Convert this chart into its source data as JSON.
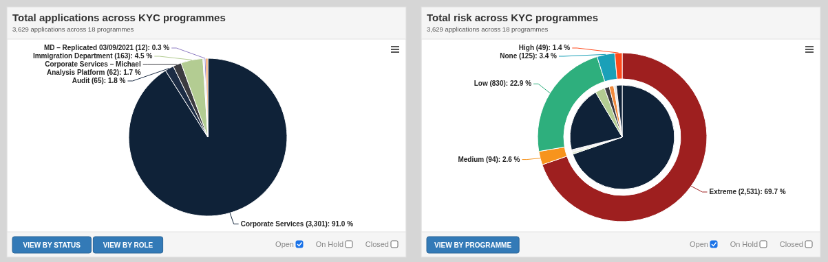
{
  "chart_data": [
    {
      "type": "pie",
      "title": "Total applications across KYC programmes",
      "subtitle": "3,629 applications across 18 programmes",
      "categories": [
        "Corporate Services (3,301)",
        "Audit (65)",
        "Corporate Services – Michael Analysis Platform (62)",
        "Immigration Department (163)",
        null,
        "MD – Replicated 03/09/2021 (12)",
        null
      ],
      "values": [
        91.0,
        1.8,
        1.7,
        4.5,
        0.3,
        0.3,
        0.4
      ],
      "colors": [
        "#0f2238",
        "#1c2c44",
        "#3b3b40",
        "#b3cc92",
        "#e4e4f0",
        "#8e7cc3",
        "#f08a3c"
      ],
      "value_labels": [
        "91.0 %",
        "1.8 %",
        "1.7 %",
        "4.5 %",
        null,
        "0.3 %",
        null
      ],
      "annotations": [
        "VIEW BY STATUS",
        "VIEW BY ROLE",
        "Open",
        "On Hold",
        "Closed"
      ]
    },
    {
      "type": "donut",
      "title": "Total risk across KYC programmes",
      "subtitle": "3,629 applications across 18 programmes",
      "categories": [
        "Extreme (2,531)",
        "Medium (94)",
        "Low (830)",
        "None (125)",
        "High (49)"
      ],
      "values": [
        69.7,
        2.6,
        22.9,
        3.4,
        1.4
      ],
      "colors": [
        "#9e1f1f",
        "#f7941d",
        "#2eaf7d",
        "#1aa0b8",
        "#ff4a1c"
      ],
      "value_labels": [
        "69.7 %",
        "2.6 %",
        "22.9 %",
        "3.4 %",
        "1.4 %"
      ],
      "annotations": [
        "VIEW BY PROGRAMME",
        "Open",
        "On Hold",
        "Closed"
      ]
    },
    {
      "type": "pie",
      "categories": [
        null,
        null,
        null,
        null,
        null,
        null,
        null,
        null,
        null
      ],
      "values": [
        69.7,
        0.6,
        0.8,
        20.4,
        3.0,
        1.5,
        1.4,
        0.8,
        1.8
      ],
      "colors": [
        "#0f2238",
        "#dfe9cf",
        "#f0f0f0",
        "#0f2238",
        "#b3cc92",
        "#3b3b40",
        "#f08a3c",
        "#e6e6e6",
        "#0f2238"
      ]
    }
  ]
}
